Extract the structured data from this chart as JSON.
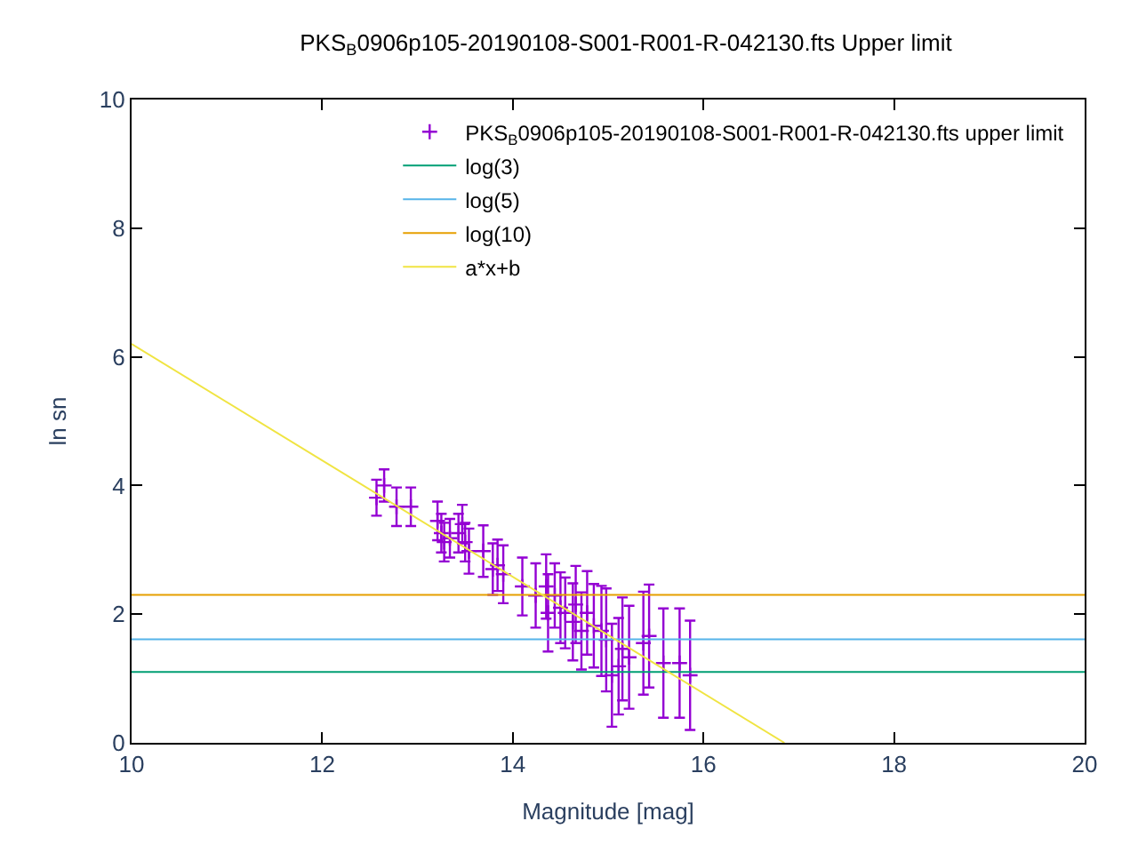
{
  "chart_data": {
    "type": "scatter",
    "title": "PKS$_{B}$0906p105-20190108-S001-R001-R-042130.fts Upper limit",
    "xlabel": "Magnitude [mag]",
    "ylabel": "ln sn",
    "xlim": [
      10,
      20
    ],
    "xticks": [
      10,
      12,
      14,
      16,
      18,
      20
    ],
    "ylim": [
      0,
      10
    ],
    "yticks": [
      0,
      2,
      4,
      6,
      8,
      10
    ],
    "grid": false,
    "legend": "top right",
    "series": [
      {
        "name": "PKS$_{B}$0906p105-20190108-S001-R001-R-042130.fts upper limit",
        "marker": "cross",
        "color": "#9400d3",
        "x": [
          12.57,
          12.65,
          12.78,
          12.93,
          13.21,
          13.25,
          13.28,
          13.34,
          13.43,
          13.47,
          13.5,
          13.54,
          13.69,
          13.79,
          13.84,
          13.9,
          14.1,
          14.24,
          14.35,
          14.37,
          14.44,
          14.5,
          14.55,
          14.63,
          14.66,
          14.72,
          14.78,
          14.85,
          14.93,
          14.98,
          15.04,
          15.11,
          15.15,
          15.22,
          15.37,
          15.43,
          15.58,
          15.75,
          15.86
        ],
        "values": [
          3.81,
          4.0,
          3.67,
          3.67,
          3.45,
          3.26,
          3.12,
          3.18,
          3.26,
          3.4,
          3.12,
          2.98,
          2.98,
          2.7,
          2.76,
          2.62,
          2.43,
          2.29,
          2.43,
          2.02,
          2.29,
          2.1,
          2.02,
          1.88,
          2.15,
          1.74,
          2.02,
          1.82,
          1.74,
          1.6,
          1.05,
          1.19,
          1.46,
          1.33,
          1.55,
          1.66,
          1.24,
          1.24,
          1.05
        ],
        "errors": [
          0.28,
          0.25,
          0.3,
          0.3,
          0.3,
          0.3,
          0.3,
          0.3,
          0.3,
          0.3,
          0.3,
          0.35,
          0.4,
          0.4,
          0.4,
          0.45,
          0.45,
          0.5,
          0.5,
          0.6,
          0.5,
          0.55,
          0.55,
          0.6,
          0.6,
          0.6,
          0.65,
          0.65,
          0.7,
          0.8,
          0.8,
          0.75,
          0.8,
          0.8,
          0.8,
          0.8,
          0.85,
          0.85,
          0.85
        ]
      },
      {
        "name": "log(3)",
        "type": "line",
        "color": "#009e73",
        "x": [
          10,
          20
        ],
        "values": [
          1.1,
          1.1
        ]
      },
      {
        "name": "log(5)",
        "type": "line",
        "color": "#56b4e9",
        "x": [
          10,
          20
        ],
        "values": [
          1.61,
          1.61
        ]
      },
      {
        "name": "log(10)",
        "type": "line",
        "color": "#e69f00",
        "x": [
          10,
          20
        ],
        "values": [
          2.3,
          2.3
        ]
      },
      {
        "name": "a*x+b",
        "type": "line",
        "color": "#f0e442",
        "x": [
          10,
          16.85
        ],
        "values": [
          6.2,
          0.0
        ]
      }
    ]
  }
}
